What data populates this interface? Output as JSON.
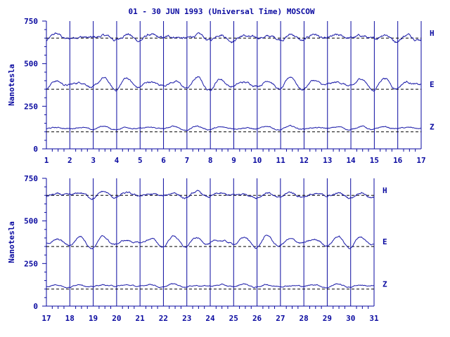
{
  "chart_data": {
    "type": "line",
    "title": "01 - 30 JUN 1993 (Universal Time) MOSCOW",
    "colors": {
      "axis": "#0a0aa0",
      "trace": "#1a1aa8",
      "baseline": "#000000"
    },
    "panels": [
      {
        "ylabel": "Nanotesla",
        "ylim": [
          0,
          750
        ],
        "yticks": [
          "750",
          "500",
          "250",
          "0"
        ],
        "xlim": [
          1,
          17
        ],
        "xticks": [
          "1",
          "2",
          "3",
          "4",
          "5",
          "6",
          "7",
          "8",
          "9",
          "10",
          "11",
          "12",
          "13",
          "14",
          "15",
          "16",
          "17"
        ],
        "series": [
          {
            "name": "H",
            "baseline": 650,
            "level": 655,
            "amp": 18,
            "noise": 9
          },
          {
            "name": "E",
            "baseline": 350,
            "level": 382,
            "amp": 32,
            "noise": 7
          },
          {
            "name": "Z",
            "baseline": 100,
            "level": 122,
            "amp": 10,
            "noise": 4
          }
        ]
      },
      {
        "ylabel": "Nanotesla",
        "ylim": [
          0,
          750
        ],
        "yticks": [
          "750",
          "500",
          "250",
          "0"
        ],
        "xlim": [
          17,
          31
        ],
        "xticks": [
          "17",
          "18",
          "19",
          "20",
          "21",
          "22",
          "23",
          "24",
          "25",
          "26",
          "27",
          "28",
          "29",
          "30",
          "31"
        ],
        "series": [
          {
            "name": "H",
            "baseline": 650,
            "level": 652,
            "amp": 16,
            "noise": 7
          },
          {
            "name": "E",
            "baseline": 350,
            "level": 378,
            "amp": 30,
            "noise": 6
          },
          {
            "name": "Z",
            "baseline": 100,
            "level": 120,
            "amp": 9,
            "noise": 4
          }
        ]
      }
    ]
  }
}
